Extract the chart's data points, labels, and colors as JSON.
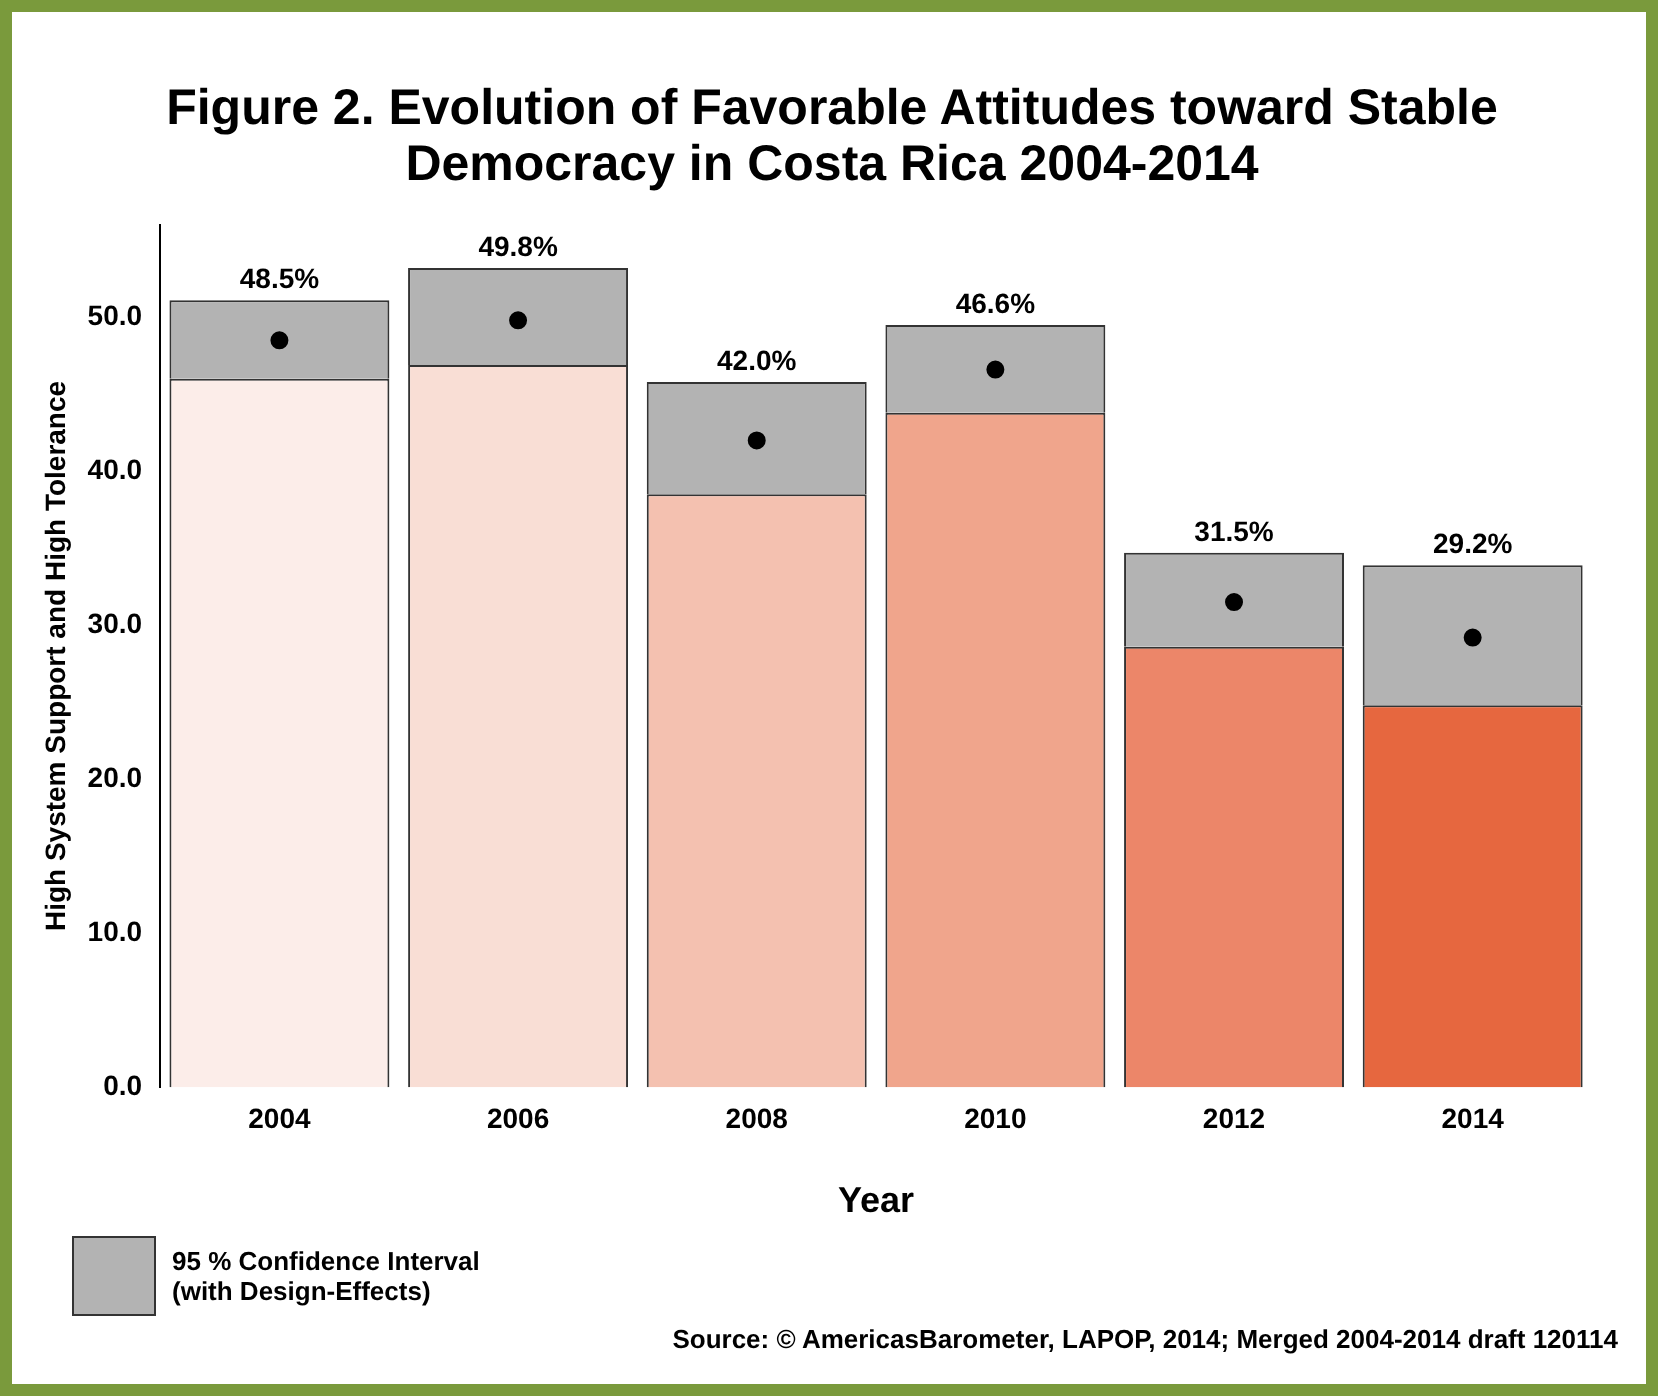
{
  "chart_data": {
    "type": "bar",
    "title": "Figure 2. Evolution of Favorable Attitudes toward Stable Democracy in Costa Rica 2004-2014",
    "xlabel": "Year",
    "ylabel": "High System Support and High Tolerance",
    "categories": [
      "2004",
      "2006",
      "2008",
      "2010",
      "2012",
      "2014"
    ],
    "stacked": true,
    "series": [
      {
        "colors": [
          "#fcede9",
          "#f9ded5",
          "#f4c1b0",
          "#f0a58c",
          "#ec8669",
          "#e6673f"
        ],
        "values": [
          46.0,
          46.9,
          38.5,
          43.8,
          28.6,
          24.8
        ]
      },
      {
        "name": "95 % Confidence Interval (with Design-Effects)",
        "color": "#b3b3b3",
        "values": [
          5.1,
          6.3,
          7.3,
          5.7,
          6.1,
          9.1
        ]
      },
      {
        "type": "scatter",
        "color": "#000000",
        "values": [
          48.5,
          49.8,
          42.0,
          46.6,
          31.5,
          29.2
        ],
        "value_labels": [
          "48.5%",
          "49.8%",
          "42.0%",
          "46.6%",
          "31.5%",
          "29.2%"
        ],
        "marker": "circle"
      }
    ],
    "ylim": [
      0,
      56
    ],
    "yticks": [
      {
        "value": 0,
        "label": "0.0"
      },
      {
        "value": 10,
        "label": "10.0"
      },
      {
        "value": 20,
        "label": "20.0"
      },
      {
        "value": 30,
        "label": "30.0"
      },
      {
        "value": 40,
        "label": "40.0"
      },
      {
        "value": 50,
        "label": "50.0"
      }
    ],
    "grid": false,
    "legend": "bottom left",
    "annotations": [
      "Source: © AmericasBarometer, LAPOP, 2014; Merged 2004-2014 draft 120114"
    ]
  }
}
